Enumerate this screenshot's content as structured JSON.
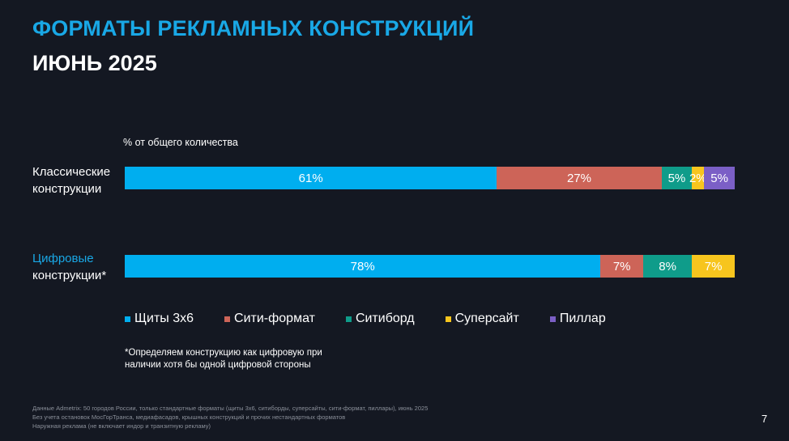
{
  "title": "ФОРМАТЫ РЕКЛАМНЫХ КОНСТРУКЦИЙ",
  "subtitle": "ИЮНЬ 2025",
  "chart_data": {
    "type": "bar",
    "orientation": "horizontal",
    "stacked": true,
    "unit_label": "% от общего количества",
    "categories": [
      {
        "line1": "Классические",
        "line2": "конструкции"
      },
      {
        "line1": "Цифровые",
        "line2": "конструкции*"
      }
    ],
    "series": [
      {
        "name": "Щиты 3х6",
        "color": "#00aeef",
        "values": [
          61,
          78
        ],
        "labels": [
          "61%",
          "78%"
        ]
      },
      {
        "name": "Сити-формат",
        "color": "#cd6458",
        "values": [
          27,
          7
        ],
        "labels": [
          "27%",
          "7%"
        ]
      },
      {
        "name": "Ситиборд",
        "color": "#0f9c8a",
        "values": [
          5,
          8
        ],
        "labels": [
          "5%",
          "8%"
        ]
      },
      {
        "name": "Суперсайт",
        "color": "#f7c51e",
        "values": [
          2,
          7
        ],
        "labels": [
          "2%",
          "7%"
        ]
      },
      {
        "name": "Пиллар",
        "color": "#7b5fc6",
        "values": [
          5,
          0
        ],
        "labels": [
          "5%",
          ""
        ]
      }
    ],
    "legend_position": "bottom",
    "grid": false
  },
  "footnote": [
    "*Определяем конструкцию как цифровую при",
    "наличии хотя бы одной цифровой стороны"
  ],
  "source": [
    "Данные Admetrix: 50 городов России, только стандартные форматы (щиты 3х6, ситиборды, суперсайты, сити-формат, пиллары), июнь 2025",
    "Без учета остановок МосГорТранса, медиафасадов, крышных конструкций и прочих нестандартных форматов",
    "Наружная реклама (не включает индор и транзитную рекламу)"
  ],
  "page_number": "7"
}
